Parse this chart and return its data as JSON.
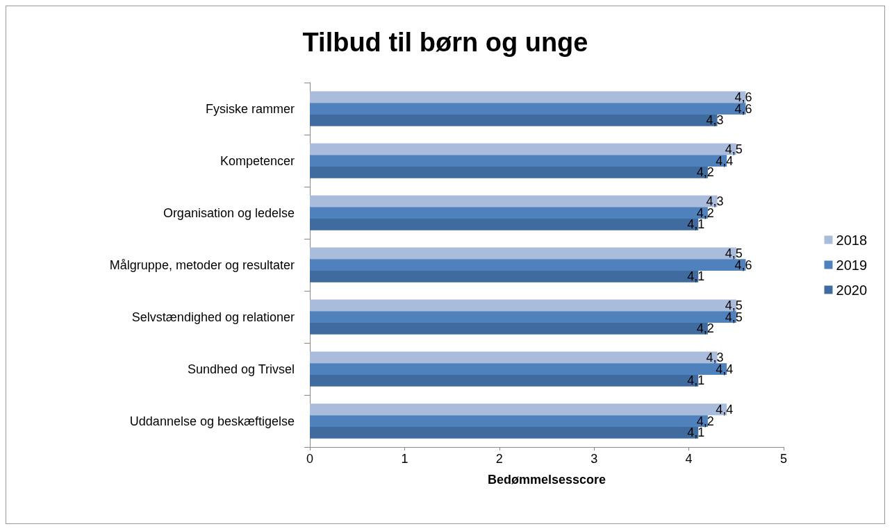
{
  "chart_data": {
    "type": "bar",
    "orientation": "horizontal",
    "title": "Tilbud til børn og unge",
    "xlabel": "Bedømmelsesscore",
    "categories": [
      "Fysiske rammer",
      "Kompetencer",
      "Organisation og ledelse",
      "Målgruppe, metoder og resultater",
      "Selvstændighed og relationer",
      "Sundhed og Trivsel",
      "Uddannelse og beskæftigelse"
    ],
    "series": [
      {
        "name": "2018",
        "color": "#a9bcdb",
        "values": [
          4.6,
          4.5,
          4.3,
          4.5,
          4.5,
          4.3,
          4.4
        ],
        "value_labels": [
          "4,6",
          "4,5",
          "4,3",
          "4,5",
          "4,5",
          "4,3",
          "4,4"
        ]
      },
      {
        "name": "2019",
        "color": "#4f81bd",
        "values": [
          4.6,
          4.4,
          4.2,
          4.6,
          4.5,
          4.4,
          4.2
        ],
        "value_labels": [
          "4,6",
          "4,4",
          "4,2",
          "4,6",
          "4,5",
          "4,4",
          "4,2"
        ]
      },
      {
        "name": "2020",
        "color": "#3f6b9e",
        "values": [
          4.3,
          4.2,
          4.1,
          4.1,
          4.2,
          4.1,
          4.1
        ],
        "value_labels": [
          "4,3",
          "4,2",
          "4,1",
          "4,1",
          "4,2",
          "4,1",
          "4,1"
        ]
      }
    ],
    "xlim": [
      0,
      5
    ],
    "xticks": [
      0,
      1,
      2,
      3,
      4,
      5
    ],
    "grid": false,
    "legend": "right"
  }
}
